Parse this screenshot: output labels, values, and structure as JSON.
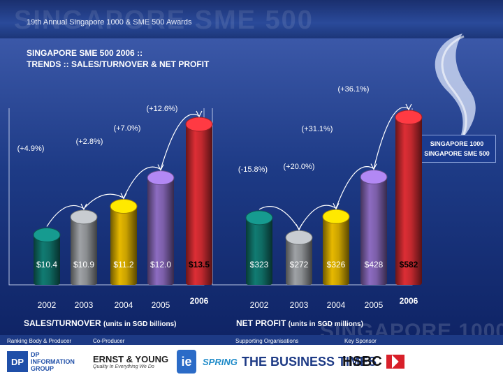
{
  "header": {
    "watermark": "SINGAPORE SME 500",
    "title": "19th Annual Singapore 1000 & SME 500 Awards"
  },
  "slide": {
    "title_line1": "SINGAPORE SME 500 2006 ::",
    "title_line2": "TRENDS :: SALES/TURNOVER & NET PROFIT"
  },
  "badge": {
    "line1": "SINGAPORE 1000",
    "line2": "SINGAPORE SME 500"
  },
  "bottom_watermark": "SINGAPORE 1000",
  "footer": {
    "caption1": "Ranking Body & Producer",
    "caption2": "Co-Producer",
    "caption3": "Supporting Organisations",
    "caption4": "Key Sponsor",
    "dp_mark": "DP",
    "dp_line1": "DP",
    "dp_line2": "INFORMATION",
    "dp_line3": "GROUP",
    "ey_name": "ERNST & YOUNG",
    "ey_tag": "Quality In Everything We Do",
    "ie_mark": "ie",
    "spring_name": "SPRING",
    "bt_name": "THE BUSINESS TIMES",
    "hsbc_name": "HSBC"
  },
  "colors": {
    "teal": "#0f6b63",
    "gray": "#8a8d90",
    "gold": "#c9a100",
    "purple": "#7b5ea8",
    "red": "#c0282e",
    "background": "#1d3a85"
  },
  "chart_data": [
    {
      "type": "bar",
      "title": "SALES/TURNOVER",
      "title_suffix": "(units in SGD billions)",
      "categories": [
        "2002",
        "2003",
        "2004",
        "2005",
        "2006"
      ],
      "values": [
        10.4,
        10.9,
        11.2,
        12.0,
        13.5
      ],
      "value_labels": [
        "$10.4",
        "$10.9",
        "$11.2",
        "$12.0",
        "$13.5"
      ],
      "growth_labels": [
        "(+4.9%)",
        "(+2.8%)",
        "(+7.0%)",
        "(+12.6%)"
      ],
      "bar_colors": [
        "#0f6b63",
        "#8a8d90",
        "#c9a100",
        "#7b5ea8",
        "#c0282e"
      ]
    },
    {
      "type": "bar",
      "title": "NET PROFIT",
      "title_suffix": "(units in SGD millions)",
      "categories": [
        "2002",
        "2003",
        "2004",
        "2005",
        "2006"
      ],
      "values": [
        323,
        272,
        326,
        428,
        582
      ],
      "value_labels": [
        "$323",
        "$272",
        "$326",
        "$428",
        "$582"
      ],
      "growth_labels": [
        "(-15.8%)",
        "(+20.0%)",
        "(+31.1%)",
        "(+36.1%)"
      ],
      "bar_colors": [
        "#0f6b63",
        "#8a8d90",
        "#c9a100",
        "#7b5ea8",
        "#c0282e"
      ]
    }
  ]
}
